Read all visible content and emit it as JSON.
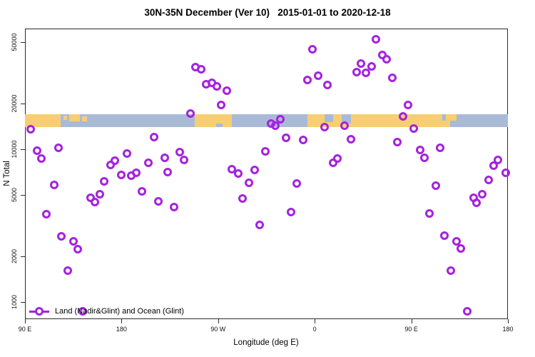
{
  "title": "30N-35N December (Ver 10)   2015-01-01 to 2020-12-18",
  "chart_data": {
    "type": "scatter",
    "title": "30N-35N December (Ver 10)   2015-01-01 to 2020-12-18",
    "xlabel": "Longitude (deg E)",
    "ylabel": "N Total",
    "legend": "Land (Nadir&Glint) and Ocean (Glint)",
    "legend_position": "bottom-left",
    "marker": "open-circle",
    "marker_color": "#a522df",
    "grid": false,
    "x_axis": {
      "xlim": [
        90,
        540
      ],
      "ticks": [
        {
          "lon": 90,
          "label": "90 E"
        },
        {
          "lon": 180,
          "label": "180"
        },
        {
          "lon": 270,
          "label": "90 W"
        },
        {
          "lon": 360,
          "label": "0"
        },
        {
          "lon": 450,
          "label": "90 E"
        },
        {
          "lon": 540,
          "label": "180"
        }
      ]
    },
    "y_axis": {
      "scale": "log",
      "ylim": [
        780,
        62000
      ],
      "ticks": [
        1000,
        2000,
        5000,
        10000,
        20000,
        50000
      ]
    },
    "map_band": {
      "description": "30N-35N latitude world-map strip drawn across the plot",
      "value_top": 17000,
      "value_bottom": 14000,
      "land_color": "#f8ce72",
      "ocean_color": "#a9bad7",
      "segments": [
        {
          "type": "land",
          "from": 90,
          "to": 123
        },
        {
          "type": "ocean",
          "from": 123,
          "to": 248
        },
        {
          "type": "land",
          "from": 248,
          "to": 283
        },
        {
          "type": "ocean",
          "from": 283,
          "to": 353
        },
        {
          "type": "land",
          "from": 353,
          "to": 479
        },
        {
          "type": "ocean",
          "from": 479,
          "to": 540
        }
      ],
      "patches": [
        {
          "type": "land",
          "from": 126,
          "to": 129,
          "v": 0.1,
          "h": 0.35
        },
        {
          "type": "land",
          "from": 131,
          "to": 141,
          "v": 0.0,
          "h": 0.55
        },
        {
          "type": "land",
          "from": 143,
          "to": 148,
          "v": 0.15,
          "h": 0.4
        },
        {
          "type": "ocean",
          "from": 268,
          "to": 274,
          "v": 0.72,
          "h": 0.28
        },
        {
          "type": "ocean",
          "from": 369,
          "to": 377,
          "v": 0.0,
          "h": 0.6
        },
        {
          "type": "ocean",
          "from": 385,
          "to": 394,
          "v": 0.0,
          "h": 0.7
        },
        {
          "type": "land",
          "from": 479,
          "to": 486,
          "v": 0.5,
          "h": 0.5
        },
        {
          "type": "land",
          "from": 482,
          "to": 492,
          "v": 0.0,
          "h": 0.5
        }
      ]
    },
    "points": [
      [
        95,
        13500
      ],
      [
        101,
        9800
      ],
      [
        105,
        8700
      ],
      [
        110,
        3760
      ],
      [
        117,
        5840
      ],
      [
        121,
        10200
      ],
      [
        124,
        2690
      ],
      [
        130,
        1600
      ],
      [
        135,
        2500
      ],
      [
        139,
        2220
      ],
      [
        144,
        870
      ],
      [
        151,
        4810
      ],
      [
        155,
        4500
      ],
      [
        160,
        5080
      ],
      [
        164,
        6170
      ],
      [
        170,
        7890
      ],
      [
        174,
        8420
      ],
      [
        180,
        6790
      ],
      [
        185,
        9380
      ],
      [
        189,
        6720
      ],
      [
        194,
        7010
      ],
      [
        199,
        5300
      ],
      [
        205,
        8150
      ],
      [
        210,
        12000
      ],
      [
        214,
        4560
      ],
      [
        220,
        8790
      ],
      [
        223,
        7090
      ],
      [
        229,
        4200
      ],
      [
        234,
        9580
      ],
      [
        238,
        8510
      ],
      [
        244,
        17100
      ],
      [
        249,
        34500
      ],
      [
        254,
        33400
      ],
      [
        259,
        26600
      ],
      [
        264,
        27200
      ],
      [
        269,
        25800
      ],
      [
        273,
        19500
      ],
      [
        278,
        24200
      ],
      [
        283,
        7400
      ],
      [
        289,
        6940
      ],
      [
        293,
        4760
      ],
      [
        299,
        6040
      ],
      [
        304,
        7320
      ],
      [
        309,
        3190
      ],
      [
        314,
        9680
      ],
      [
        319,
        14700
      ],
      [
        323,
        14300
      ],
      [
        328,
        15700
      ],
      [
        333,
        11900
      ],
      [
        338,
        3880
      ],
      [
        343,
        5970
      ],
      [
        349,
        11500
      ],
      [
        353,
        28400
      ],
      [
        358,
        45100
      ],
      [
        363,
        30300
      ],
      [
        369,
        14000
      ],
      [
        372,
        26300
      ],
      [
        377,
        8150
      ],
      [
        381,
        8700
      ],
      [
        388,
        14300
      ],
      [
        394,
        11600
      ],
      [
        399,
        32000
      ],
      [
        403,
        36400
      ],
      [
        408,
        31600
      ],
      [
        413,
        34900
      ],
      [
        417,
        52400
      ],
      [
        423,
        41400
      ],
      [
        427,
        38800
      ],
      [
        432,
        29300
      ],
      [
        437,
        11100
      ],
      [
        442,
        16400
      ],
      [
        447,
        19500
      ],
      [
        452,
        13700
      ],
      [
        458,
        9890
      ],
      [
        462,
        8790
      ],
      [
        467,
        3810
      ],
      [
        473,
        5780
      ],
      [
        477,
        10200
      ],
      [
        481,
        2720
      ],
      [
        487,
        1610
      ],
      [
        492,
        2500
      ],
      [
        496,
        2230
      ],
      [
        502,
        870
      ],
      [
        508,
        4810
      ],
      [
        511,
        4460
      ],
      [
        516,
        5090
      ],
      [
        522,
        6310
      ],
      [
        527,
        7820
      ],
      [
        531,
        8530
      ],
      [
        538,
        6990
      ]
    ]
  }
}
